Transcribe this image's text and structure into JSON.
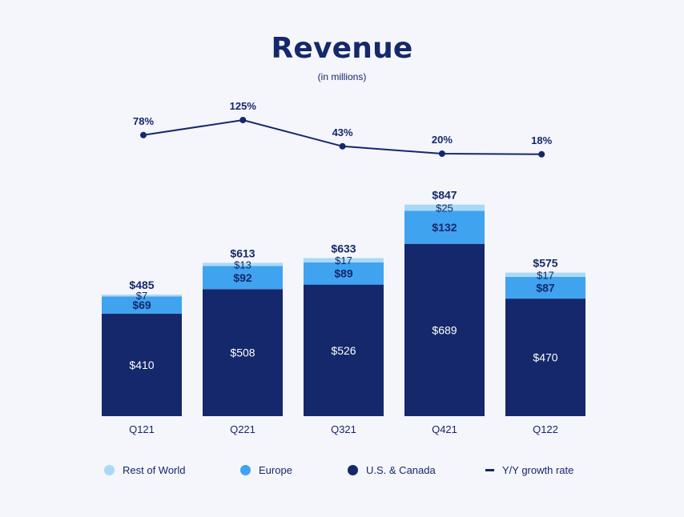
{
  "title": "Revenue",
  "subtitle": "(in millions)",
  "colors": {
    "rest_of_world": "#a9daf5",
    "europe": "#3fa3f0",
    "us_canada": "#14286b",
    "growth": "#14286b"
  },
  "legend": [
    {
      "label": "Rest of World",
      "color": "#a9daf5",
      "kind": "dot"
    },
    {
      "label": "Europe",
      "color": "#3fa3f0",
      "kind": "dot"
    },
    {
      "label": "U.S. & Canada",
      "color": "#14286b",
      "kind": "dot"
    },
    {
      "label": "Y/Y growth rate",
      "color": "#14286b",
      "kind": "line"
    }
  ],
  "chart_data": {
    "type": "bar",
    "stacked": true,
    "categories": [
      "Q121",
      "Q221",
      "Q321",
      "Q421",
      "Q122"
    ],
    "series": [
      {
        "name": "U.S. & Canada",
        "values": [
          410,
          508,
          526,
          689,
          470
        ],
        "labels": [
          "$410",
          "$508",
          "$526",
          "$689",
          "$470"
        ]
      },
      {
        "name": "Europe",
        "values": [
          69,
          92,
          89,
          132,
          87
        ],
        "labels": [
          "$69",
          "$92",
          "$89",
          "$132",
          "$87"
        ]
      },
      {
        "name": "Rest of World",
        "values": [
          7,
          13,
          17,
          25,
          17
        ],
        "labels": [
          "$7",
          "$13",
          "$17",
          "$25",
          "$17"
        ]
      }
    ],
    "totals": [
      "$485",
      "$613",
      "$633",
      "$847",
      "$575"
    ],
    "line": {
      "name": "Y/Y growth rate",
      "values": [
        78,
        125,
        43,
        20,
        18
      ],
      "labels": [
        "78%",
        "125%",
        "43%",
        "20%",
        "18%"
      ]
    },
    "legend_position": "bottom",
    "grid": false
  }
}
